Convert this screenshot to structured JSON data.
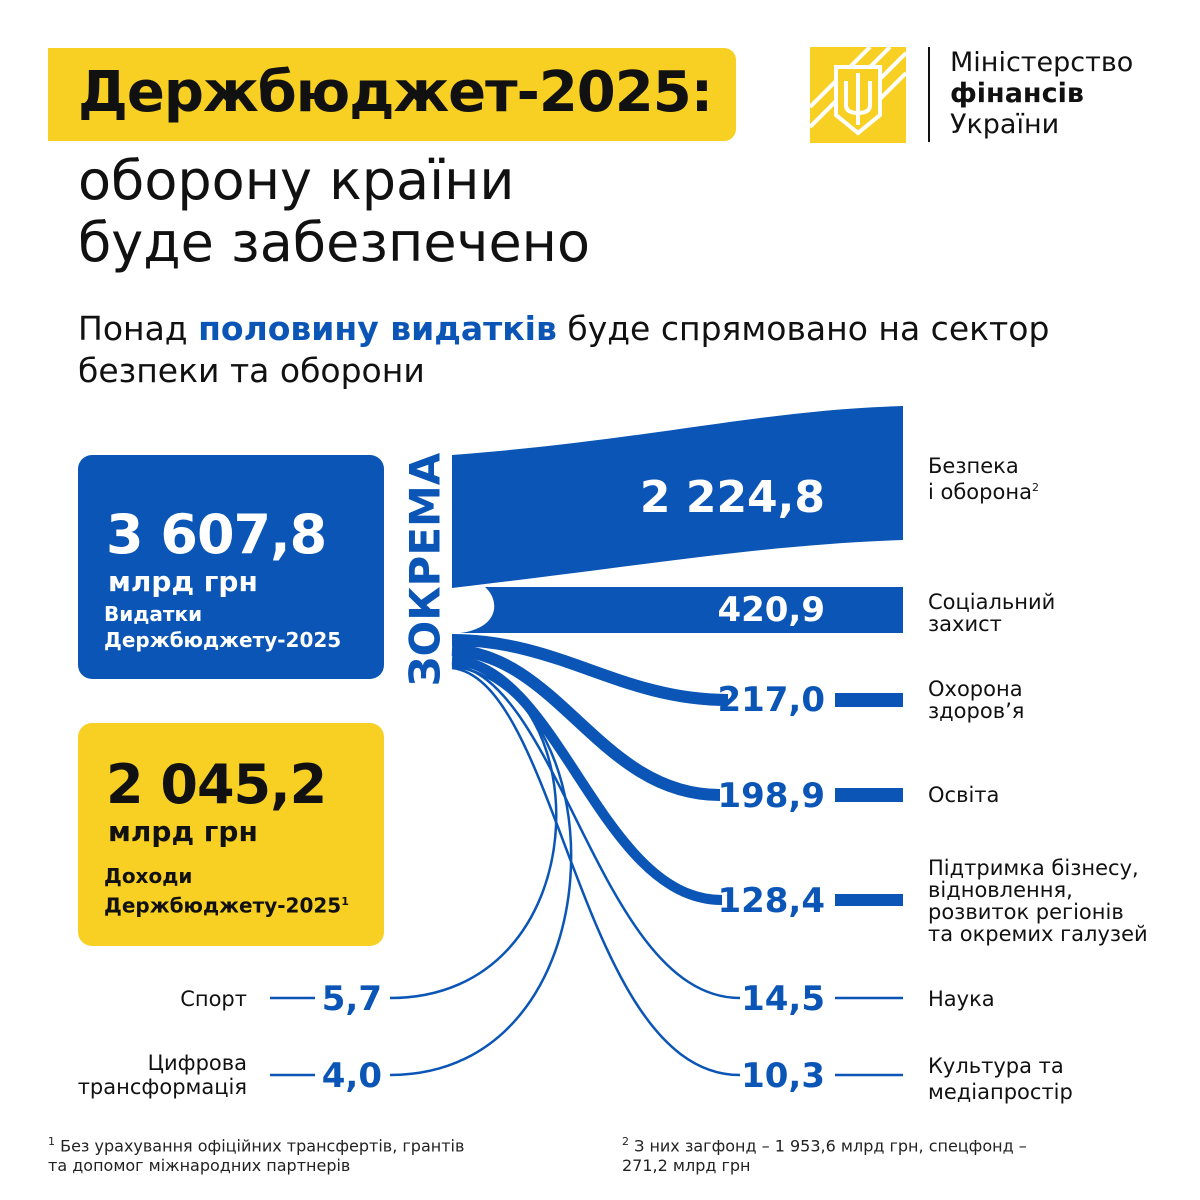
{
  "header": {
    "title": "Держбюджет-2025:",
    "subtitle": "оборону країни\nбуде забезпечено",
    "lead_pre": "Понад ",
    "lead_bold": "половину видатків",
    "lead_post": " буде спрямовано на сектор безпеки та оборони"
  },
  "logo": {
    "line1": "Міністерство",
    "line2": "фінансів",
    "line3": "України",
    "emblem": "trident-icon"
  },
  "expenses": {
    "value": "3 607,8",
    "unit": "млрд грн",
    "caption": "Видатки\nДержбюджету-2025"
  },
  "income": {
    "value": "2 045,2",
    "unit": "млрд грн",
    "caption": "Доходи\nДержбюджету-2025",
    "sup": "1"
  },
  "flow_label": "ЗОКРЕМА",
  "items": [
    {
      "value": "2 224,8",
      "label": "Безпека\nі оборона",
      "sup": "2"
    },
    {
      "value": "420,9",
      "label": "Соціальний\nзахист"
    },
    {
      "value": "217,0",
      "label": "Охорона\nздоров’я"
    },
    {
      "value": "198,9",
      "label": "Освіта"
    },
    {
      "value": "128,4",
      "label": "Підтримка бізнесу,\nвідновлення,\nрозвиток регіонів\nта окремих галузей"
    },
    {
      "value": "14,5",
      "label": "Наука"
    },
    {
      "value": "10,3",
      "label": "Культура та\nмедіапростір"
    },
    {
      "value": "5,7",
      "label": "Спорт"
    },
    {
      "value": "4,0",
      "label": "Цифрова\nтрансформація"
    }
  ],
  "footnotes": [
    {
      "mark": "1",
      "text": "Без урахування офіційних трансфертів, грантів\nта допомог міжнародних партнерів"
    },
    {
      "mark": "2",
      "text": "З них загфонд – 1 953,6 млрд грн, спецфонд –\n271,2 млрд грн"
    }
  ],
  "colors": {
    "blue": "#0a55b5",
    "yellow": "#f7d023"
  }
}
